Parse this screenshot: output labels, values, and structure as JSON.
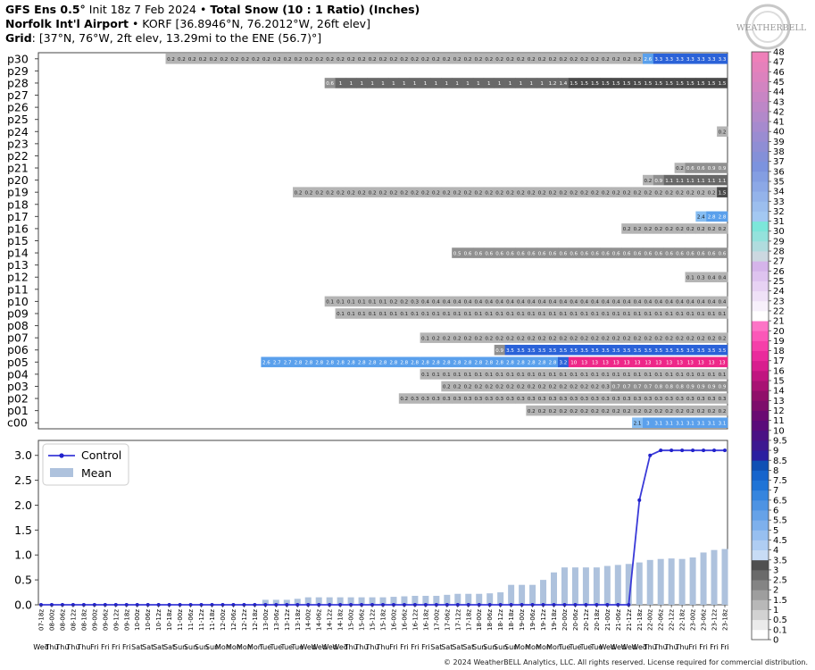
{
  "header": {
    "line1": {
      "model": "GFS Ens 0.5°",
      "init": " Init 18z 7 Feb 2024",
      "sep": " • ",
      "product": "Total Snow (10 : 1 Ratio) (Inches)"
    },
    "line2": {
      "station": "Norfolk Int'l Airport",
      "details": " • KORF [36.8946°N, 76.2012°W, 26ft elev]"
    },
    "line3": {
      "label": "Grid",
      "details": ": [37°N, 76°W, 2ft elev, 13.29mi to the ENE (56.7)°]"
    }
  },
  "logo": {
    "text": "WEATHERBELL"
  },
  "copyright": "© 2024 WeatherBELL Analytics, LLC. All rights reserved. License required for commercial distribution.",
  "chart_data": [
    {
      "type": "heatmap",
      "rows": [
        "c00",
        "p01",
        "p02",
        "p03",
        "p04",
        "p05",
        "p06",
        "p07",
        "p08",
        "p09",
        "p10",
        "p11",
        "p12",
        "p13",
        "p14",
        "p15",
        "p16",
        "p17",
        "p18",
        "p19",
        "p20",
        "p21",
        "p22",
        "p23",
        "p24",
        "p25",
        "p26",
        "p27",
        "p28",
        "p29",
        "p30"
      ],
      "columns_count": 65,
      "cell_series": {
        "p30": {
          "start": 12,
          "values": [
            0.2,
            0.2,
            0.2,
            0.2,
            0.2,
            0.2,
            0.2,
            0.2,
            0.2,
            0.2,
            0.2,
            0.2,
            0.2,
            0.2,
            0.2,
            0.2,
            0.2,
            0.2,
            0.2,
            0.2,
            0.2,
            0.2,
            0.2,
            0.2,
            0.2,
            0.2,
            0.2,
            0.2,
            0.2,
            0.2,
            0.2,
            0.2,
            0.2,
            0.2,
            0.2,
            0.2,
            0.2,
            0.2,
            0.2,
            0.2,
            0.2,
            0.2,
            0.2,
            0.2,
            0.2,
            2.6,
            3.3,
            3.3,
            3.3,
            3.3,
            3.3,
            3.3,
            3.3
          ]
        },
        "p28": {
          "start": 27,
          "values": [
            0.6,
            1,
            1,
            1,
            1,
            1,
            1,
            1,
            1,
            1,
            1,
            1,
            1,
            1,
            1,
            1,
            1,
            1,
            1,
            1,
            1,
            1.2,
            1.4,
            1.5,
            1.5,
            1.5,
            1.5,
            1.5,
            1.5,
            1.5,
            1.5,
            1.5,
            1.5,
            1.5,
            1.5,
            1.5,
            1.5,
            1.5,
            1.5,
            1.5,
            1.5,
            1.5,
            1.5,
            1.5,
            1.5,
            1.5,
            1.5,
            1.5,
            1.5,
            1.5,
            1.5,
            1.5,
            1.5,
            1.5,
            1.5,
            1.5,
            1.5,
            1.5
          ]
        },
        "p24": {
          "start": 64,
          "values": [
            0.2
          ]
        },
        "p21": {
          "start": 60,
          "values": [
            0.2,
            0.6,
            0.6,
            0.9,
            0.9
          ]
        },
        "p20": {
          "start": 57,
          "values": [
            0.2,
            0.9,
            1.1,
            1.1,
            1.1,
            1.1,
            1.1,
            1.1
          ]
        },
        "p19": {
          "start": 24,
          "values": [
            0.2,
            0.2,
            0.2,
            0.2,
            0.2,
            0.2,
            0.2,
            0.2,
            0.2,
            0.2,
            0.2,
            0.2,
            0.2,
            0.2,
            0.2,
            0.2,
            0.2,
            0.2,
            0.2,
            0.2,
            0.2,
            0.2,
            0.2,
            0.2,
            0.2,
            0.2,
            0.2,
            0.2,
            0.2,
            0.2,
            0.2,
            0.2,
            0.2,
            0.2,
            0.2,
            0.2,
            0.2,
            0.2,
            0.2,
            0.2,
            1.5,
            1.6,
            1.6
          ]
        },
        "p17": {
          "start": 62,
          "values": [
            2.4,
            2.8,
            2.8
          ]
        },
        "p16": {
          "start": 55,
          "values": [
            0.2,
            0.2,
            0.2,
            0.2,
            0.2,
            0.2,
            0.2,
            0.2,
            0.2,
            0.2
          ]
        },
        "p14": {
          "start": 39,
          "values": [
            0.5,
            0.6,
            0.6,
            0.6,
            0.6,
            0.6,
            0.6,
            0.6,
            0.6,
            0.6,
            0.6,
            0.6,
            0.6,
            0.6,
            0.6,
            0.6,
            0.6,
            0.6,
            0.6,
            0.6,
            0.6,
            0.6,
            0.6,
            0.6,
            0.6,
            0.6
          ]
        },
        "p12": {
          "start": 61,
          "values": [
            0.1,
            0.3,
            0.4,
            0.4
          ]
        },
        "p10": {
          "start": 27,
          "values": [
            0.1,
            0.1,
            0.1,
            0.1,
            0.1,
            0.1,
            0.2,
            0.2,
            0.3,
            0.4,
            0.4,
            0.4,
            0.4,
            0.4,
            0.4,
            0.4,
            0.4,
            0.4,
            0.4,
            0.4,
            0.4,
            0.4,
            0.4,
            0.4,
            0.4,
            0.4,
            0.4,
            0.4,
            0.4,
            0.4,
            0.4,
            0.4,
            0.4,
            0.4,
            0.4,
            0.4,
            0.4,
            0.4
          ]
        },
        "p09": {
          "start": 28,
          "values": [
            0.1,
            0.1,
            0.1,
            0.1,
            0.1,
            0.1,
            0.1,
            0.1,
            0.1,
            0.1,
            0.1,
            0.1,
            0.1,
            0.1,
            0.1,
            0.1,
            0.1,
            0.1,
            0.1,
            0.1,
            0.1,
            0.1,
            0.1,
            0.1,
            0.1,
            0.1,
            0.1,
            0.1,
            0.1,
            0.1,
            0.1,
            0.1,
            0.1,
            0.1,
            0.1,
            0.1,
            0.1
          ]
        },
        "p07": {
          "start": 36,
          "values": [
            0.1,
            0.2,
            0.2,
            0.2,
            0.2,
            0.2,
            0.2,
            0.2,
            0.2,
            0.2,
            0.2,
            0.2,
            0.2,
            0.2,
            0.2,
            0.2,
            0.2,
            0.2,
            0.2,
            0.2,
            0.2,
            0.2,
            0.2,
            0.2,
            0.2,
            0.2,
            0.2,
            0.2,
            0.2
          ]
        },
        "p06": {
          "start": 43,
          "values": [
            0.9,
            3.5,
            3.5,
            3.5,
            3.5,
            3.5,
            3.5,
            3.5,
            3.5,
            3.5,
            3.5,
            3.5,
            3.5,
            3.5,
            3.5,
            3.5,
            3.5,
            3.5,
            3.5,
            3.5,
            3.5,
            3.5
          ]
        },
        "p05": {
          "start": 21,
          "values": [
            2.6,
            2.7,
            2.7,
            2.8,
            2.8,
            2.8,
            2.8,
            2.8,
            2.8,
            2.8,
            2.8,
            2.8,
            2.8,
            2.8,
            2.8,
            2.8,
            2.8,
            2.8,
            2.8,
            2.8,
            2.8,
            2.8,
            2.8,
            2.8,
            2.8,
            2.8,
            2.8,
            2.8,
            3.2,
            10,
            13,
            13,
            13,
            13,
            13,
            13,
            13,
            13,
            13,
            13,
            13,
            13,
            13,
            13
          ]
        },
        "p04": {
          "start": 36,
          "values": [
            0.1,
            0.1,
            0.1,
            0.1,
            0.1,
            0.1,
            0.1,
            0.1,
            0.1,
            0.1,
            0.1,
            0.1,
            0.1,
            0.1,
            0.1,
            0.1,
            0.1,
            0.1,
            0.1,
            0.1,
            0.1,
            0.1,
            0.1,
            0.1,
            0.1,
            0.1,
            0.1,
            0.1,
            0.1
          ]
        },
        "p03": {
          "start": 38,
          "values": [
            0.2,
            0.2,
            0.2,
            0.2,
            0.2,
            0.2,
            0.2,
            0.2,
            0.2,
            0.2,
            0.2,
            0.2,
            0.2,
            0.2,
            0.2,
            0.3,
            0.7,
            0.7,
            0.7,
            0.7,
            0.8,
            0.8,
            0.8,
            0.9,
            0.9,
            0.9,
            0.9
          ]
        },
        "p02": {
          "start": 34,
          "values": [
            0.2,
            0.3,
            0.3,
            0.3,
            0.3,
            0.3,
            0.3,
            0.3,
            0.3,
            0.3,
            0.3,
            0.3,
            0.3,
            0.3,
            0.3,
            0.3,
            0.3,
            0.3,
            0.3,
            0.3,
            0.3,
            0.3,
            0.3,
            0.3,
            0.3,
            0.3,
            0.3,
            0.3,
            0.3,
            0.3,
            0.3
          ]
        },
        "p01": {
          "start": 46,
          "values": [
            0.2,
            0.2,
            0.2,
            0.2,
            0.2,
            0.2,
            0.2,
            0.2,
            0.2,
            0.2,
            0.2,
            0.2,
            0.2,
            0.2,
            0.2,
            0.2,
            0.2,
            0.2,
            0.2
          ]
        },
        "c00": {
          "start": 56,
          "values": [
            2.1,
            3,
            3.1,
            3.1,
            3.1,
            3.1,
            3.1,
            3.1,
            3.1
          ]
        }
      },
      "colorbar": {
        "ticks": [
          "0",
          "0.1",
          "0.5",
          "1",
          "1.5",
          "2",
          "2.5",
          "3",
          "3.5",
          "4",
          "4.5",
          "5",
          "5.5",
          "6",
          "6.5",
          "7",
          "7.5",
          "8",
          "8.5",
          "9",
          "9.5",
          "10",
          "11",
          "12",
          "13",
          "14",
          "15",
          "16",
          "17",
          "18",
          "19",
          "20",
          "21",
          "22",
          "23",
          "24",
          "25",
          "26",
          "27",
          "28",
          "29",
          "30",
          "31",
          "32",
          "33",
          "34",
          "35",
          "36",
          "37",
          "38",
          "39",
          "40",
          "41",
          "42",
          "43",
          "44",
          "45",
          "46",
          "47",
          "48"
        ],
        "colors": [
          "#ffffff",
          "#ebebeb",
          "#d2d2d2",
          "#b8b8b8",
          "#9e9e9e",
          "#848484",
          "#6a6a6a",
          "#505050",
          "#c8dcf5",
          "#afcdf3",
          "#97bff0",
          "#7eb0ec",
          "#66a2e8",
          "#4d93e3",
          "#3585de",
          "#1f74d6",
          "#1664cc",
          "#1050b4",
          "#2a1fa0",
          "#3c1890",
          "#4a1084",
          "#5a0b7a",
          "#6a0a72",
          "#7d0d6b",
          "#90106a",
          "#a81273",
          "#c01680",
          "#d81e8e",
          "#ea2b9c",
          "#f53fa9",
          "#fb58b8",
          "#fd74c6",
          "#ffffff",
          "#f7f0fb",
          "#efe1f7",
          "#e7d2f3",
          "#dec3ef",
          "#d5b4ea",
          "#ccd8e0",
          "#b0dcde",
          "#94e2dc",
          "#7ce6da",
          "#a3c8f2",
          "#9cbeee",
          "#94b3ea",
          "#8ca8e6",
          "#849ee2",
          "#7c93de",
          "#8490d8",
          "#8f8ed4",
          "#9a8cd1",
          "#a68ace",
          "#b289ca",
          "#bd87c7",
          "#c885c4",
          "#d284c1",
          "#dc82be",
          "#e581bb",
          "#ee80b9",
          "#f47fb7"
        ]
      }
    },
    {
      "type": "bar",
      "y_axis": {
        "ticks": [
          "0.0",
          "0.5",
          "1.0",
          "1.5",
          "2.0",
          "2.5",
          "3.0"
        ],
        "range": [
          0,
          3.3
        ]
      },
      "legend": [
        "Control",
        "Mean"
      ],
      "legend_position": "top-left",
      "x_labels": [
        "07-18z",
        "08-00z",
        "08-06z",
        "08-12z",
        "08-18z",
        "09-00z",
        "09-06z",
        "09-12z",
        "09-18z",
        "10-00z",
        "10-06z",
        "10-12z",
        "10-18z",
        "11-00z",
        "11-06z",
        "11-12z",
        "11-18z",
        "12-00z",
        "12-06z",
        "12-12z",
        "12-18z",
        "13-00z",
        "13-06z",
        "13-12z",
        "13-18z",
        "14-00z",
        "14-06z",
        "14-12z",
        "14-18z",
        "15-00z",
        "15-06z",
        "15-12z",
        "15-18z",
        "16-00z",
        "16-06z",
        "16-12z",
        "16-18z",
        "17-00z",
        "17-06z",
        "17-12z",
        "17-18z",
        "18-00z",
        "18-06z",
        "18-12z",
        "18-18z",
        "19-00z",
        "19-06z",
        "19-12z",
        "19-18z",
        "20-00z",
        "20-06z",
        "20-12z",
        "20-18z",
        "21-00z",
        "21-06z",
        "21-12z",
        "21-18z",
        "22-00z",
        "22-06z",
        "22-12z",
        "22-18z",
        "23-00z",
        "23-06z",
        "23-12z",
        "23-18z"
      ],
      "day_labels": [
        "Wed",
        "Thu",
        "Thu",
        "Thu",
        "Thu",
        "Fri",
        "Fri",
        "Fri",
        "Fri",
        "Sat",
        "Sat",
        "Sat",
        "Sat",
        "Sun",
        "Sun",
        "Sun",
        "Sun",
        "Mon",
        "Mon",
        "Mon",
        "Mon",
        "Tue",
        "Tue",
        "Tue",
        "Tue",
        "Wed",
        "Wed",
        "Wed",
        "Wed",
        "Thu",
        "Thu",
        "Thu",
        "Thu",
        "Fri",
        "Fri",
        "Fri",
        "Fri",
        "Sat",
        "Sat",
        "Sat",
        "Sat",
        "Sun",
        "Sun",
        "Sun",
        "Sun",
        "Mon",
        "Mon",
        "Mon",
        "Mon",
        "Tue",
        "Tue",
        "Tue",
        "Tue",
        "Wed",
        "Wed",
        "Wed",
        "Wed",
        "Thu",
        "Thu",
        "Thu",
        "Thu",
        "Fri",
        "Fri",
        "Fri",
        "Fri"
      ],
      "series": [
        {
          "name": "Control",
          "values": [
            0,
            0,
            0,
            0,
            0,
            0,
            0,
            0,
            0,
            0,
            0,
            0,
            0,
            0,
            0,
            0,
            0,
            0,
            0,
            0,
            0,
            0,
            0,
            0,
            0,
            0,
            0,
            0,
            0,
            0,
            0,
            0,
            0,
            0,
            0,
            0,
            0,
            0,
            0,
            0,
            0,
            0,
            0,
            0,
            0,
            0,
            0,
            0,
            0,
            0,
            0,
            0,
            0,
            0,
            0,
            0,
            2.1,
            3.0,
            3.1,
            3.1,
            3.1,
            3.1,
            3.1,
            3.1,
            3.1
          ]
        },
        {
          "name": "Mean",
          "values": [
            0,
            0,
            0,
            0,
            0,
            0,
            0,
            0,
            0,
            0,
            0,
            0,
            0,
            0,
            0,
            0,
            0,
            0,
            0,
            0,
            0,
            0.1,
            0.1,
            0.1,
            0.12,
            0.15,
            0.15,
            0.15,
            0.15,
            0.15,
            0.15,
            0.15,
            0.15,
            0.16,
            0.17,
            0.18,
            0.18,
            0.18,
            0.2,
            0.22,
            0.22,
            0.22,
            0.23,
            0.25,
            0.4,
            0.4,
            0.4,
            0.5,
            0.65,
            0.75,
            0.75,
            0.75,
            0.75,
            0.78,
            0.8,
            0.82,
            0.85,
            0.9,
            0.92,
            0.93,
            0.92,
            0.95,
            1.05,
            1.1,
            1.12
          ]
        }
      ]
    }
  ]
}
